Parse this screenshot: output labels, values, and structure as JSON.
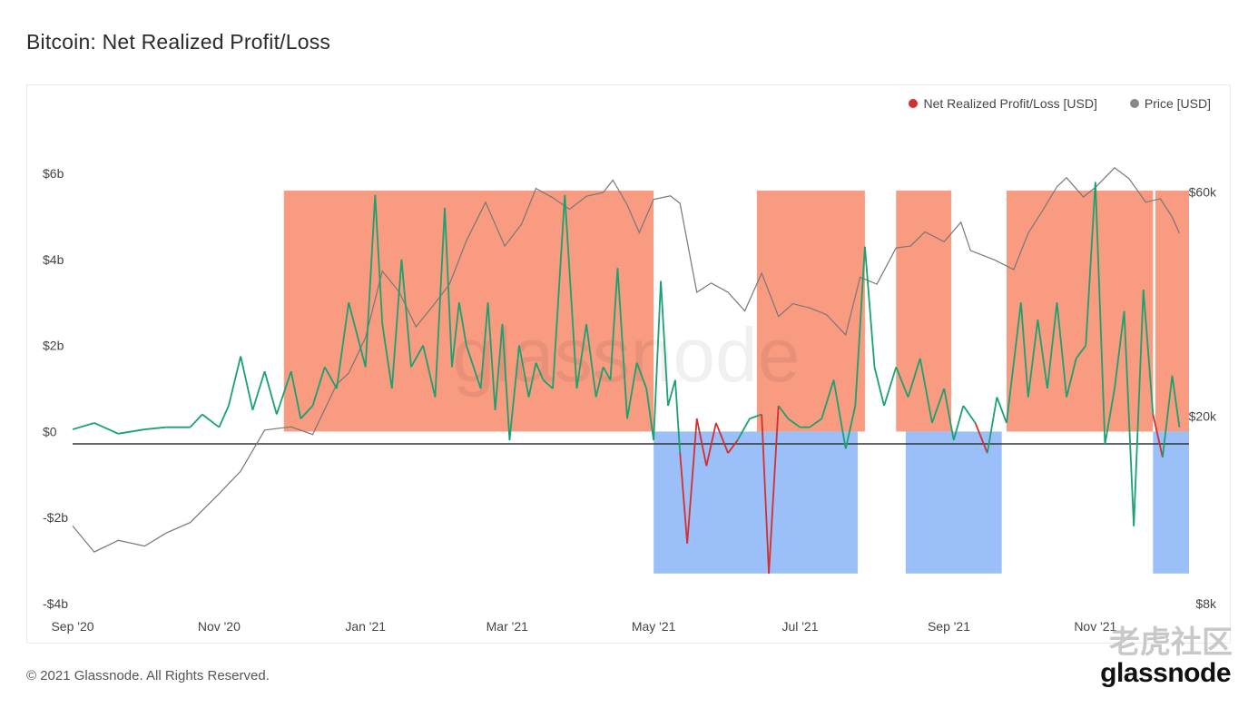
{
  "title": "Bitcoin: Net Realized Profit/Loss",
  "legend": {
    "nrpl_label": "Net Realized Profit/Loss [USD]",
    "nrpl_color": "#d32f2f",
    "price_label": "Price [USD]",
    "price_color": "#888888"
  },
  "footer": "© 2021 Glassnode. All Rights Reserved.",
  "brand": "glassnode",
  "watermark_cn": "老虎社区",
  "watermark_chart": "glassnode",
  "chart_data": {
    "type": "line",
    "title": "Bitcoin: Net Realized Profit/Loss",
    "x_start": "2020-09-01",
    "x_end": "2021-12-10",
    "x_tick_labels": [
      "Sep '20",
      "Nov '20",
      "Jan '21",
      "Mar '21",
      "May '21",
      "Jul '21",
      "Sep '21",
      "Nov '21"
    ],
    "x_tick_dates": [
      "2020-09-01",
      "2020-11-01",
      "2021-01-01",
      "2021-03-01",
      "2021-05-01",
      "2021-07-01",
      "2021-09-01",
      "2021-11-01"
    ],
    "left_axis": {
      "label": "",
      "ticks": [
        "$6b",
        "$4b",
        "$2b",
        "$0",
        "-$2b",
        "-$4b"
      ],
      "tick_values": [
        6,
        4,
        2,
        0,
        -2,
        -4
      ],
      "ylim": [
        -4,
        7.5
      ],
      "unit": "USD billions"
    },
    "right_axis": {
      "label": "",
      "ticks": [
        "$60k",
        "$20k",
        "$8k"
      ],
      "tick_values": [
        60000,
        20000,
        8000
      ],
      "scale": "log",
      "ylim": [
        8000,
        90000
      ]
    },
    "colors": {
      "profit": "#1aa170",
      "profit_overlay": "#7a6a30",
      "loss": "#d32f2f",
      "loss_overlay": "#7a3a6a",
      "price": "#777777",
      "profit_zone": "#f7896a",
      "loss_zone": "#8ab4f7"
    },
    "series": [
      {
        "name": "Net Realized Profit/Loss [USD]",
        "axis": "left",
        "x": [
          "2020-09-01",
          "2020-09-10",
          "2020-09-20",
          "2020-10-01",
          "2020-10-10",
          "2020-10-20",
          "2020-10-25",
          "2020-11-01",
          "2020-11-05",
          "2020-11-10",
          "2020-11-15",
          "2020-11-20",
          "2020-11-25",
          "2020-12-01",
          "2020-12-05",
          "2020-12-10",
          "2020-12-15",
          "2020-12-20",
          "2020-12-25",
          "2021-01-01",
          "2021-01-05",
          "2021-01-08",
          "2021-01-12",
          "2021-01-16",
          "2021-01-20",
          "2021-01-25",
          "2021-01-30",
          "2021-02-03",
          "2021-02-06",
          "2021-02-09",
          "2021-02-12",
          "2021-02-15",
          "2021-02-18",
          "2021-02-21",
          "2021-02-24",
          "2021-02-27",
          "2021-03-02",
          "2021-03-06",
          "2021-03-10",
          "2021-03-13",
          "2021-03-16",
          "2021-03-20",
          "2021-03-25",
          "2021-03-30",
          "2021-04-03",
          "2021-04-07",
          "2021-04-10",
          "2021-04-13",
          "2021-04-16",
          "2021-04-20",
          "2021-04-24",
          "2021-04-28",
          "2021-05-01",
          "2021-05-04",
          "2021-05-07",
          "2021-05-10",
          "2021-05-12",
          "2021-05-15",
          "2021-05-19",
          "2021-05-23",
          "2021-05-27",
          "2021-06-01",
          "2021-06-05",
          "2021-06-10",
          "2021-06-15",
          "2021-06-18",
          "2021-06-22",
          "2021-06-26",
          "2021-07-01",
          "2021-07-05",
          "2021-07-10",
          "2021-07-15",
          "2021-07-20",
          "2021-07-24",
          "2021-07-28",
          "2021-08-01",
          "2021-08-05",
          "2021-08-10",
          "2021-08-15",
          "2021-08-20",
          "2021-08-25",
          "2021-08-30",
          "2021-09-03",
          "2021-09-07",
          "2021-09-12",
          "2021-09-17",
          "2021-09-21",
          "2021-09-25",
          "2021-10-01",
          "2021-10-04",
          "2021-10-08",
          "2021-10-12",
          "2021-10-16",
          "2021-10-20",
          "2021-10-24",
          "2021-10-28",
          "2021-11-01",
          "2021-11-05",
          "2021-11-09",
          "2021-11-13",
          "2021-11-17",
          "2021-11-21",
          "2021-11-25",
          "2021-11-29",
          "2021-12-03",
          "2021-12-06"
        ],
        "values": [
          0.05,
          0.2,
          -0.05,
          0.05,
          0.1,
          0.1,
          0.4,
          0.1,
          0.6,
          1.75,
          0.5,
          1.4,
          0.4,
          1.4,
          0.3,
          0.6,
          1.5,
          1.0,
          3.0,
          1.5,
          5.5,
          2.5,
          1.0,
          4.0,
          1.5,
          2.0,
          0.8,
          5.2,
          1.5,
          3.0,
          2.0,
          1.5,
          1.0,
          3.0,
          0.5,
          2.5,
          -0.2,
          2.0,
          0.8,
          1.6,
          1.2,
          1.0,
          5.5,
          1.0,
          2.5,
          0.8,
          1.5,
          1.2,
          3.8,
          0.3,
          1.6,
          1.0,
          -0.2,
          3.5,
          0.6,
          1.2,
          -0.5,
          -2.6,
          0.3,
          -0.8,
          0.2,
          -0.5,
          -0.2,
          0.3,
          0.4,
          -3.3,
          0.6,
          0.3,
          0.1,
          0.1,
          0.3,
          1.2,
          -0.4,
          0.6,
          4.3,
          1.5,
          0.6,
          1.5,
          0.8,
          1.7,
          0.2,
          1.0,
          -0.2,
          0.6,
          0.2,
          -0.5,
          0.8,
          0.2,
          3.0,
          0.8,
          2.6,
          1.0,
          3.0,
          0.8,
          1.7,
          2.0,
          5.8,
          -0.3,
          1.0,
          2.8,
          -2.2,
          3.3,
          0.4,
          -0.6,
          1.3,
          0.1
        ],
        "style": "line"
      },
      {
        "name": "Price [USD]",
        "axis": "right",
        "x": [
          "2020-09-01",
          "2020-09-10",
          "2020-09-20",
          "2020-10-01",
          "2020-10-10",
          "2020-10-20",
          "2020-11-01",
          "2020-11-10",
          "2020-11-20",
          "2020-12-01",
          "2020-12-10",
          "2020-12-20",
          "2020-12-25",
          "2021-01-01",
          "2021-01-08",
          "2021-01-15",
          "2021-01-22",
          "2021-01-29",
          "2021-02-05",
          "2021-02-12",
          "2021-02-20",
          "2021-02-28",
          "2021-03-07",
          "2021-03-13",
          "2021-03-20",
          "2021-03-27",
          "2021-04-03",
          "2021-04-10",
          "2021-04-14",
          "2021-04-20",
          "2021-04-25",
          "2021-05-01",
          "2021-05-08",
          "2021-05-12",
          "2021-05-19",
          "2021-05-25",
          "2021-06-01",
          "2021-06-08",
          "2021-06-15",
          "2021-06-22",
          "2021-06-28",
          "2021-07-05",
          "2021-07-12",
          "2021-07-20",
          "2021-07-26",
          "2021-08-02",
          "2021-08-10",
          "2021-08-16",
          "2021-08-22",
          "2021-08-30",
          "2021-09-06",
          "2021-09-10",
          "2021-09-20",
          "2021-09-28",
          "2021-10-04",
          "2021-10-10",
          "2021-10-16",
          "2021-10-20",
          "2021-10-27",
          "2021-11-01",
          "2021-11-09",
          "2021-11-15",
          "2021-11-22",
          "2021-11-28",
          "2021-12-03",
          "2021-12-06"
        ],
        "values": [
          11700,
          10300,
          10900,
          10600,
          11300,
          11900,
          13700,
          15300,
          18700,
          19000,
          18300,
          23400,
          24700,
          29400,
          40700,
          36800,
          31000,
          34300,
          38200,
          47200,
          57000,
          46000,
          51200,
          61000,
          58300,
          55100,
          58700,
          59800,
          63500,
          56300,
          49100,
          57800,
          58800,
          56700,
          36700,
          38400,
          36700,
          33500,
          40300,
          32600,
          34700,
          34000,
          32900,
          29800,
          39500,
          38200,
          45600,
          46000,
          49300,
          47000,
          51700,
          45000,
          43000,
          41000,
          49000,
          54700,
          61500,
          64300,
          58500,
          61300,
          67500,
          64000,
          57000,
          58000,
          53000,
          49000
        ],
        "style": "line"
      }
    ],
    "annotations": [
      {
        "type": "profit_zone",
        "x_from": "2020-11-28",
        "x_to": "2021-05-01"
      },
      {
        "type": "loss_zone",
        "x_from": "2021-05-01",
        "x_to": "2021-07-25"
      },
      {
        "type": "profit_zone",
        "x_from": "2021-06-13",
        "x_to": "2021-07-28"
      },
      {
        "type": "profit_zone",
        "x_from": "2021-08-10",
        "x_to": "2021-09-02"
      },
      {
        "type": "loss_zone",
        "x_from": "2021-08-14",
        "x_to": "2021-09-23"
      },
      {
        "type": "profit_zone",
        "x_from": "2021-09-25",
        "x_to": "2021-11-25"
      },
      {
        "type": "profit_zone",
        "x_from": "2021-11-26",
        "x_to": "2021-12-10"
      },
      {
        "type": "loss_zone",
        "x_from": "2021-11-25",
        "x_to": "2021-12-10"
      }
    ]
  }
}
